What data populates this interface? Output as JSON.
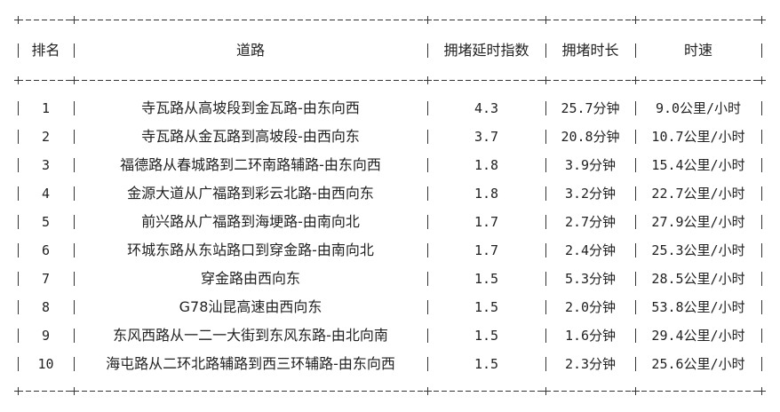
{
  "table": {
    "headers": [
      "排名",
      "道路",
      "拥堵延时指数",
      "拥堵时长",
      "时速"
    ],
    "rows": [
      [
        "1",
        "寺瓦路从高坡段到金瓦路-由东向西",
        "4.3",
        "25.7分钟",
        "9.0公里/小时"
      ],
      [
        "2",
        "寺瓦路从金瓦路到高坡段-由西向东",
        "3.7",
        "20.8分钟",
        "10.7公里/小时"
      ],
      [
        "3",
        "福德路从春城路到二环南路辅路-由东向西",
        "1.8",
        "3.9分钟",
        "15.4公里/小时"
      ],
      [
        "4",
        "金源大道从广福路到彩云北路-由西向东",
        "1.8",
        "3.2分钟",
        "22.7公里/小时"
      ],
      [
        "5",
        "前兴路从广福路到海埂路-由南向北",
        "1.7",
        "2.7分钟",
        "27.9公里/小时"
      ],
      [
        "6",
        "环城东路从东站路口到穿金路-由南向北",
        "1.7",
        "2.4分钟",
        "25.3公里/小时"
      ],
      [
        "7",
        "穿金路由西向东",
        "1.5",
        "5.3分钟",
        "28.5公里/小时"
      ],
      [
        "8",
        "G78汕昆高速由西向东",
        "1.5",
        "2.0分钟",
        "53.8公里/小时"
      ],
      [
        "9",
        "东风西路从一二一大街到东风东路-由北向南",
        "1.5",
        "1.6分钟",
        "29.4公里/小时"
      ],
      [
        "10",
        "海屯路从二环北路辅路到西三环辅路-由东向西",
        "1.5",
        "2.3分钟",
        "25.6公里/小时"
      ]
    ]
  }
}
